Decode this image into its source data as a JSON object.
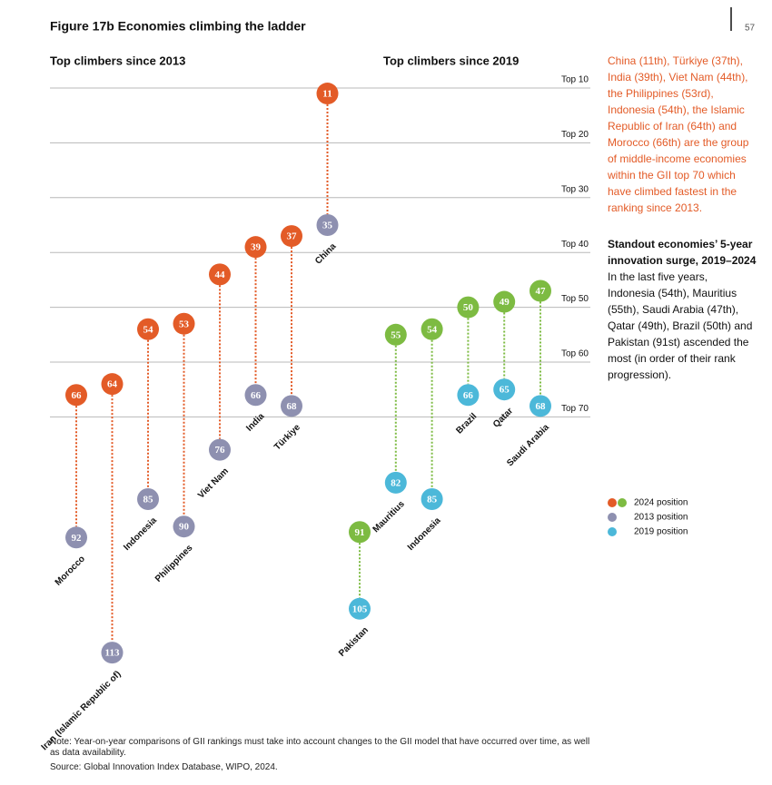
{
  "header": {
    "title": "Figure 17b Economies climbing the ladder",
    "page": "57"
  },
  "chart_data": [
    {
      "type": "dumbbell",
      "title": "Top climbers since 2013",
      "categories": [
        "Morocco",
        "Iran (Islamic Republic of)",
        "Indonesia",
        "Philippines",
        "Viet Nam",
        "India",
        "Türkiye",
        "China"
      ],
      "series": [
        {
          "name": "2024 position",
          "color": "#e35b27",
          "values": [
            66,
            64,
            54,
            53,
            44,
            39,
            37,
            11
          ]
        },
        {
          "name": "2013 position",
          "color": "#8e90b0",
          "values": [
            92,
            113,
            85,
            90,
            76,
            66,
            68,
            35
          ]
        }
      ],
      "ylim": [
        0,
        120
      ],
      "inverted": true,
      "yticks": [
        {
          "value": 10,
          "label": "Top 10"
        },
        {
          "value": 20,
          "label": "Top 20"
        },
        {
          "value": 30,
          "label": "Top 30"
        },
        {
          "value": 40,
          "label": "Top 40"
        },
        {
          "value": 50,
          "label": "Top 50"
        },
        {
          "value": 60,
          "label": "Top 60"
        },
        {
          "value": 70,
          "label": "Top 70"
        }
      ],
      "grid": true
    },
    {
      "type": "dumbbell",
      "title": "Top climbers since 2019",
      "categories": [
        "Pakistan",
        "Mauritius",
        "Indonesia",
        "Brazil",
        "Qatar",
        "Saudi Arabia"
      ],
      "series": [
        {
          "name": "2024 position",
          "color": "#7dbb42",
          "values": [
            91,
            55,
            54,
            50,
            49,
            47
          ]
        },
        {
          "name": "2019 position",
          "color": "#4cb8d9",
          "values": [
            105,
            82,
            85,
            66,
            65,
            68
          ]
        }
      ],
      "ylim": [
        0,
        120
      ],
      "inverted": true
    }
  ],
  "sidebar": {
    "intro": "China (11th), Türkiye (37th), India (39th), Viet Nam (44th), the Philippines (53rd), Indonesia (54th), the Islamic Republic of Iran (64th) and Morocco (66th) are the group of middle-income economies within the GII top 70 which have climbed fastest in the ranking since 2013.",
    "heading": "Standout economies’ 5-year innovation surge, 2019–2024",
    "body": "In the last five years, Indonesia (54th), Mauritius (55th), Saudi Arabia (47th), Qatar (49th), Brazil (50th) and Pakistan (91st) ascended the most (in order of their rank progression)."
  },
  "footer": {
    "note": "Note: Year-on-year comparisons of GII rankings must take into account changes to the GII model that have occurred over time, as well as data availability.",
    "source": "Source: Global Innovation Index Database, WIPO, 2024."
  }
}
